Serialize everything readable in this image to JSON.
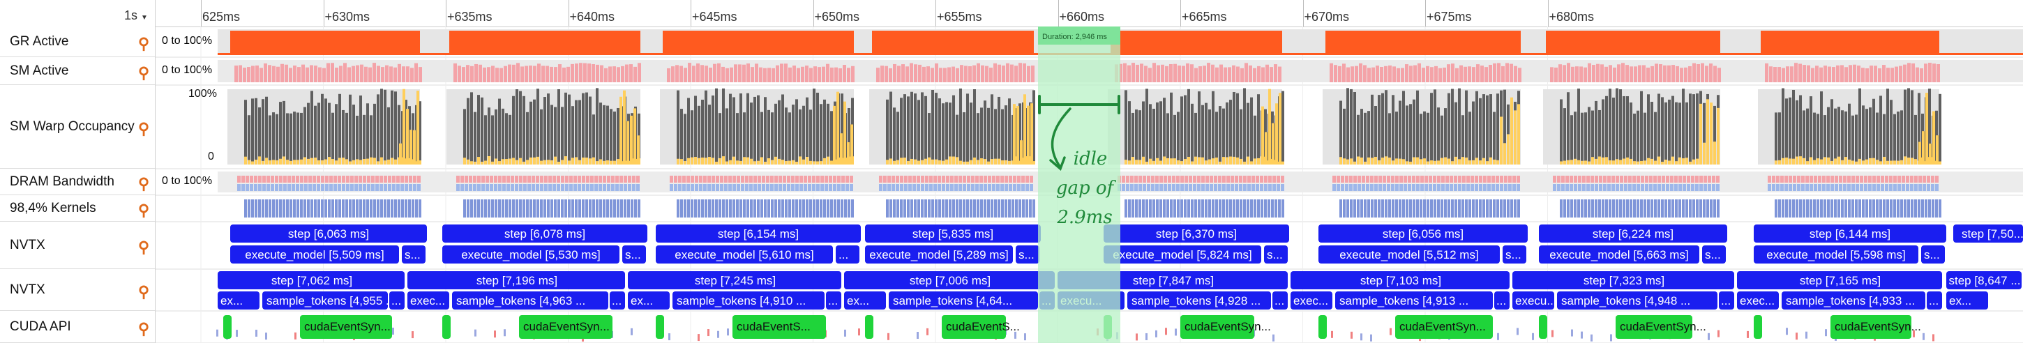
{
  "ruler": {
    "zoom_label": "1s",
    "zoom_icon": "chevron-down-icon",
    "ticks": [
      "625ms",
      "+630ms",
      "+635ms",
      "+640ms",
      "+645ms",
      "+650ms",
      "+655ms",
      "+660ms",
      "+665ms",
      "+670ms",
      "+675ms",
      "+680ms"
    ]
  },
  "rows": [
    {
      "name": "GR Active",
      "range": "0 to 100%",
      "pin_icon": "pin-icon"
    },
    {
      "name": "SM Active",
      "range": "0 to 100%",
      "pin_icon": "pin-icon"
    },
    {
      "name": "SM Warp Occupancy",
      "range": "",
      "axis_top": "100%",
      "axis_bottom": "0",
      "pin_icon": "pin-icon"
    },
    {
      "name": "DRAM Bandwidth",
      "range": "0 to 100%",
      "pin_icon": "pin-icon"
    },
    {
      "name": "98,4% Kernels",
      "range": "",
      "pin_icon": "pin-icon"
    },
    {
      "name": "NVTX",
      "range": "",
      "pin_icon": "pin-icon"
    },
    {
      "name": "NVTX",
      "range": "",
      "pin_icon": "pin-icon"
    },
    {
      "name": "CUDA API",
      "range": "",
      "pin_icon": "pin-icon"
    }
  ],
  "selection": {
    "duration_label": "Duration: 2,946 ms"
  },
  "annotation": {
    "lines": [
      "idle",
      "gap of",
      "2.9ms"
    ]
  },
  "nvtx1_steps": [
    "step [6,063 ms]",
    "step [6,078 ms]",
    "step [6,154 ms]",
    "step [5,835 ms]",
    "step [6,370 ms]",
    "step [6,056 ms]",
    "step [6,224 ms]",
    "step [6,144 ms]",
    "step [7,50..."
  ],
  "nvtx1_exec": [
    "execute_model [5,509 ms]",
    "execute_model [5,530 ms]",
    "execute_model [5,610 ms]",
    "execute_model [5,289 ms]",
    "execute_model [5,824 ms]",
    "execute_model [5,512 ms]",
    "execute_model [5,663 ms]",
    "execute_model [5,598 ms]"
  ],
  "nvtx1_short": [
    "s...",
    "s...",
    "...",
    "s...",
    "s...",
    "s...",
    "s...",
    "s..."
  ],
  "nvtx2_steps": [
    "step [7,062 ms]",
    "step [7,196 ms]",
    "step [7,245 ms]",
    "step [7,006 ms]",
    "step [7,847 ms]",
    "step [7,103 ms]",
    "step [7,323 ms]",
    "step [7,165 ms]",
    "step [8,647 ..."
  ],
  "nvtx2_exec": [
    "ex...",
    "exec...",
    "ex...",
    "ex...",
    "execu...",
    "exec...",
    "execu...",
    "exec...",
    "ex..."
  ],
  "nvtx2_sample": [
    "sample_tokens [4,955 ...",
    "sample_tokens [4,963 ...",
    "sample_tokens [4,910 ...",
    "sample_tokens [4,64...",
    "sample_tokens [4,928 ...",
    "sample_tokens [4,913 ...",
    "sample_tokens [4,948 ...",
    "sample_tokens [4,933 ..."
  ],
  "nvtx2_dots": [
    "...",
    "...",
    "...",
    "...",
    "...",
    "...",
    "...",
    "...",
    "..."
  ],
  "cuda_sync": [
    "cudaEventSyn...",
    "cudaEventSyn...",
    "cudaEventS...",
    "cudaEventS...",
    "cudaEventSyn...",
    "cudaEventSyn...",
    "cudaEventSyn...",
    "cudaEventSyn..."
  ],
  "colors": {
    "gr_active": "#ff5a1f",
    "sm_active": "#f4a3a8",
    "warp_dark": "#5f5f5f",
    "warp_yellow": "#ffcf5c",
    "dram_blue": "#9eb7ea",
    "kernels": "#7f95d9",
    "nvtx_blue": "#1a1ef0",
    "cuda_green": "#1fd43a",
    "selection": "#b8f2c6",
    "annotation": "#1f8a3a"
  }
}
